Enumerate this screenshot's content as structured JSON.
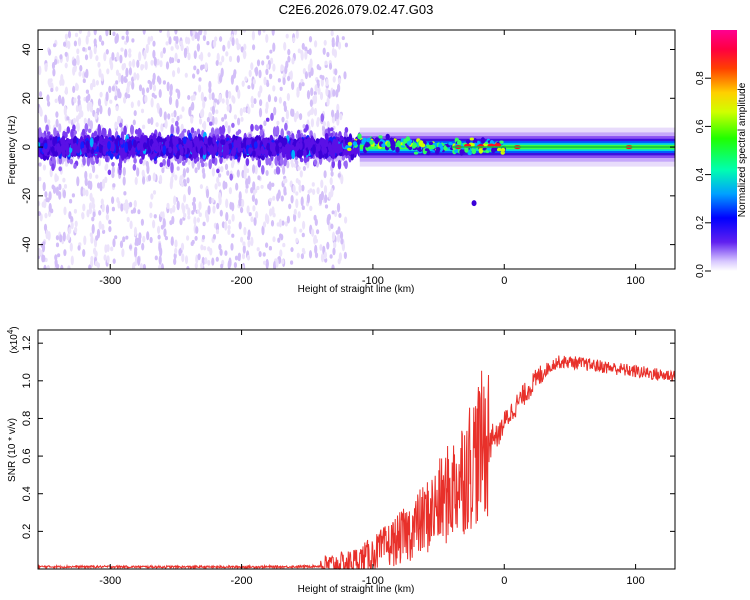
{
  "title": "C2E6.2026.079.02.47.G03",
  "chart_data": [
    {
      "type": "heatmap",
      "xlabel": "Height of straight line (km)",
      "ylabel": "Frequency (Hz)",
      "xlim": [
        -355,
        130
      ],
      "ylim": [
        -50,
        48
      ],
      "x_ticks": [
        -300,
        -200,
        -100,
        0,
        100
      ],
      "y_ticks": [
        -40,
        -20,
        0,
        20,
        40
      ],
      "colorbar": {
        "label": "Normalized spectral amplitude",
        "range": [
          0,
          1
        ],
        "ticks": [
          0.0,
          0.2,
          0.4,
          0.6,
          0.8
        ],
        "tick_labels": [
          "0.0",
          "0.2",
          "0.4",
          "0.6",
          "0.8"
        ],
        "colors": [
          "#ffffff",
          "#b090ff",
          "#5000e0",
          "#0000ff",
          "#00c0ff",
          "#00ff80",
          "#40ff00",
          "#ffff00",
          "#ff8000",
          "#ff0000",
          "#ff00a0"
        ]
      },
      "description_values": {
        "noisy_band_center_hz": 0,
        "noisy_band_halfwidth_hz": 8,
        "noise_scatter_region_km": [
          -355,
          -120
        ],
        "clean_band_region_km": [
          -100,
          130
        ],
        "outlier_point": {
          "x": -23,
          "y": -23
        }
      }
    },
    {
      "type": "line",
      "xlabel": "Height of straight line (km)",
      "ylabel": "SNR (10 * v/v)",
      "exponent_label": "(x10",
      "exponent_power": "4",
      "exponent_close": ")",
      "xlim": [
        -355,
        130
      ],
      "ylim": [
        0,
        1.27
      ],
      "x_ticks": [
        -300,
        -200,
        -100,
        0,
        100
      ],
      "y_ticks": [
        0.2,
        0.4,
        0.6,
        0.8,
        1.0,
        1.2
      ],
      "y_tick_labels": [
        "0.2",
        "0.4",
        "0.6",
        "0.8",
        "1.0",
        "1.2"
      ],
      "series": [
        {
          "name": "SNR",
          "color": "#e8302a",
          "x": [
            -355,
            -300,
            -250,
            -200,
            -160,
            -140,
            -120,
            -110,
            -100,
            -90,
            -80,
            -70,
            -60,
            -50,
            -40,
            -30,
            -20,
            -10,
            -5,
            0,
            10,
            20,
            30,
            40,
            50,
            60,
            70,
            80,
            90,
            100,
            110,
            120,
            130
          ],
          "y": [
            0.012,
            0.012,
            0.011,
            0.011,
            0.012,
            0.015,
            0.03,
            0.05,
            0.08,
            0.12,
            0.16,
            0.21,
            0.27,
            0.34,
            0.42,
            0.52,
            0.62,
            0.72,
            0.7,
            0.78,
            0.88,
            0.97,
            1.05,
            1.1,
            1.1,
            1.09,
            1.08,
            1.07,
            1.06,
            1.05,
            1.04,
            1.03,
            1.03
          ]
        }
      ]
    }
  ]
}
